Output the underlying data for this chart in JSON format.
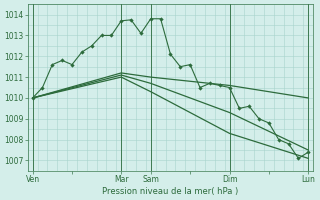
{
  "bg_color": "#d4eeea",
  "grid_color": "#a8d4cc",
  "line_color": "#2d6b3c",
  "vline_color": "#3d7a50",
  "xlabel": "Pression niveau de la mer( hPa )",
  "ylim": [
    1006.5,
    1014.5
  ],
  "yticks": [
    1007,
    1008,
    1009,
    1010,
    1011,
    1012,
    1013,
    1014
  ],
  "xtick_labels": [
    "Ven",
    "",
    "Mar",
    "Sam",
    "",
    "Dim",
    "",
    "Lun"
  ],
  "xtick_positions": [
    0,
    4,
    9,
    12,
    16,
    20,
    24,
    28
  ],
  "vline_positions": [
    0,
    9,
    12,
    20,
    28
  ],
  "series1_x": [
    0,
    1,
    2,
    3,
    4,
    5,
    6,
    7,
    8,
    9,
    10,
    11,
    12,
    13,
    14,
    15,
    16,
    17,
    18,
    19,
    20,
    21,
    22,
    23,
    24,
    25,
    26,
    27,
    28
  ],
  "series1_y": [
    1010.0,
    1010.5,
    1011.6,
    1011.8,
    1011.6,
    1012.2,
    1012.5,
    1013.0,
    1013.0,
    1013.7,
    1013.75,
    1013.1,
    1013.8,
    1013.8,
    1012.1,
    1011.5,
    1011.6,
    1010.5,
    1010.7,
    1010.6,
    1010.5,
    1009.5,
    1009.6,
    1009.0,
    1008.8,
    1008.0,
    1007.8,
    1007.1,
    1007.4
  ],
  "series2_x": [
    0,
    9,
    12,
    20,
    28
  ],
  "series2_y": [
    1010.0,
    1011.2,
    1011.0,
    1010.6,
    1010.0
  ],
  "series3_x": [
    0,
    9,
    12,
    20,
    28
  ],
  "series3_y": [
    1010.0,
    1011.1,
    1010.7,
    1009.3,
    1007.5
  ],
  "series4_x": [
    0,
    9,
    12,
    20,
    28
  ],
  "series4_y": [
    1010.0,
    1011.0,
    1010.3,
    1008.3,
    1007.1
  ]
}
